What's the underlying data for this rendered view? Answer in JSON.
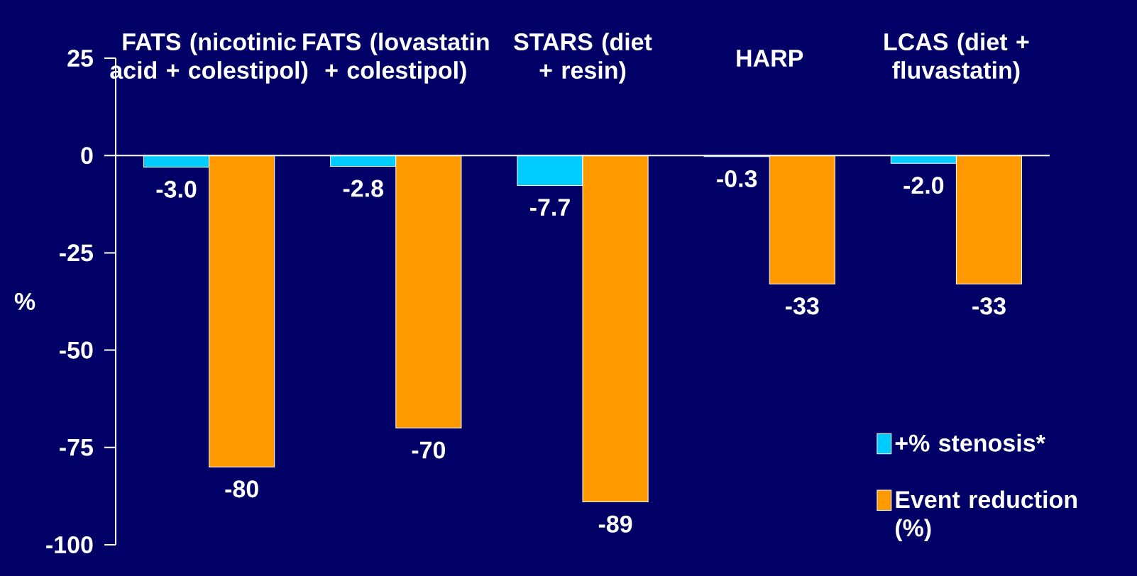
{
  "chart_data": {
    "type": "bar",
    "categories": [
      "FATS (nicotinic acid + colestipol)",
      "FATS (lovastatin + colestipol)",
      "STARS (diet + resin)",
      "HARP",
      "LCAS (diet + fluvastatin)"
    ],
    "series": [
      {
        "name": "+% stenosis*",
        "color": "#00ccff",
        "values": [
          -3.0,
          -2.8,
          -7.7,
          -0.3,
          -2.0
        ],
        "value_labels": [
          "-3.0",
          "-2.8",
          "-7.7",
          "-0.3",
          "-2.0"
        ]
      },
      {
        "name": "Event reduction (%)",
        "color": "#ff9900",
        "values": [
          -80,
          -70,
          -89,
          -33,
          -33
        ],
        "value_labels": [
          "-80",
          "-70",
          "-89",
          "-33",
          "-33"
        ]
      }
    ],
    "ylabel": "%",
    "ylim": [
      -100,
      25
    ],
    "yticks": [
      25,
      0,
      -25,
      -50,
      -75,
      -100
    ],
    "legend": "bottom right",
    "ref_lines": [
      {
        "axis": "y",
        "value": 0,
        "color": "#ffffff"
      }
    ]
  }
}
